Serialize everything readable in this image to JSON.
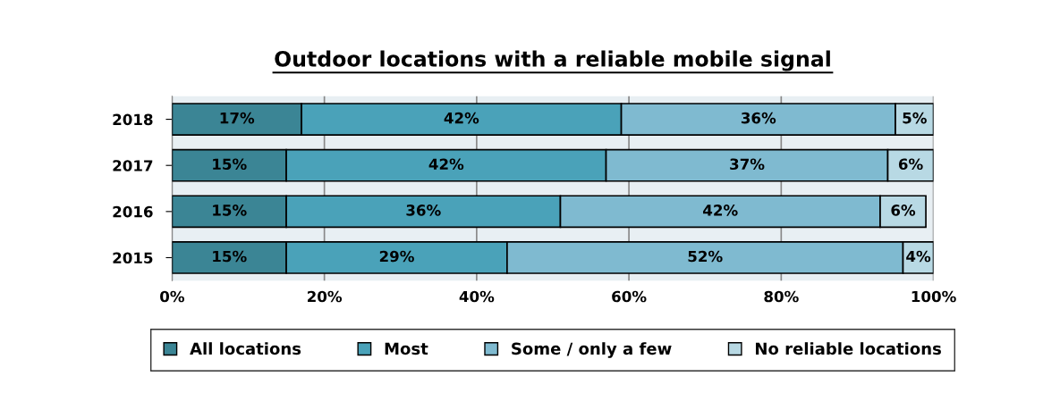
{
  "chart_data": {
    "type": "bar",
    "orientation": "horizontal",
    "stacked": true,
    "title": "Outdoor locations with a reliable mobile signal",
    "categories": [
      "2018",
      "2017",
      "2016",
      "2015"
    ],
    "series": [
      {
        "name": "All locations",
        "color": "#3b8595",
        "values": [
          17,
          15,
          15,
          15
        ],
        "value_labels": [
          "17%",
          "15%",
          "15%",
          "15%"
        ]
      },
      {
        "name": "Most",
        "color": "#4aa2b9",
        "values": [
          42,
          42,
          36,
          29
        ],
        "value_labels": [
          "42%",
          "42%",
          "36%",
          "29%"
        ]
      },
      {
        "name": "Some / only a few",
        "color": "#7fbad0",
        "values": [
          36,
          37,
          42,
          52
        ],
        "value_labels": [
          "36%",
          "37%",
          "42%",
          "52%"
        ]
      },
      {
        "name": "No reliable locations",
        "color": "#b8d9e4",
        "values": [
          5,
          6,
          6,
          4
        ],
        "value_labels": [
          "5%",
          "6%",
          "6%",
          "4%"
        ]
      }
    ],
    "xlim": [
      0,
      100
    ],
    "xticks": [
      {
        "value": 0,
        "label": "0%"
      },
      {
        "value": 20,
        "label": "20%"
      },
      {
        "value": 40,
        "label": "40%"
      },
      {
        "value": 60,
        "label": "60%"
      },
      {
        "value": 80,
        "label": "80%"
      },
      {
        "value": 100,
        "label": "100%"
      }
    ],
    "grid": "x",
    "legend": "bottom"
  }
}
